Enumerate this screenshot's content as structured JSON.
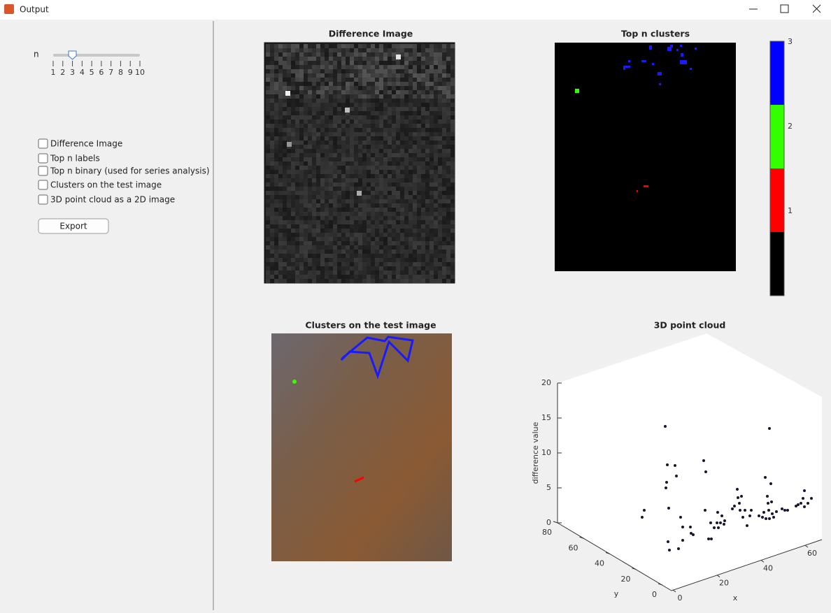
{
  "window": {
    "title": "Output"
  },
  "controls": {
    "slider_label": "n",
    "slider_ticks": [
      "1",
      "2",
      "3",
      "4",
      "5",
      "6",
      "7",
      "8",
      "9",
      "10"
    ],
    "checkboxes": [
      "Difference Image",
      "Top n labels",
      "Top n binary (used for series analysis)",
      "Clusters on the test image",
      "3D point cloud as a 2D image"
    ],
    "export_button": "Export"
  },
  "panels": [
    {
      "title": "Difference Image"
    },
    {
      "title": "Top n clusters",
      "colorbar_ticks": [
        "1",
        "2",
        "3"
      ]
    },
    {
      "title": "Clusters on the test image"
    },
    {
      "title": "3D point cloud",
      "z_label": "difference value",
      "y_label": "y",
      "x_label": "x",
      "z_ticks": [
        "0",
        "5",
        "10",
        "15",
        "20"
      ],
      "y_ticks": [
        "0",
        "20",
        "40",
        "60",
        "80"
      ],
      "x_ticks": [
        "0",
        "20",
        "40",
        "60"
      ]
    }
  ]
}
